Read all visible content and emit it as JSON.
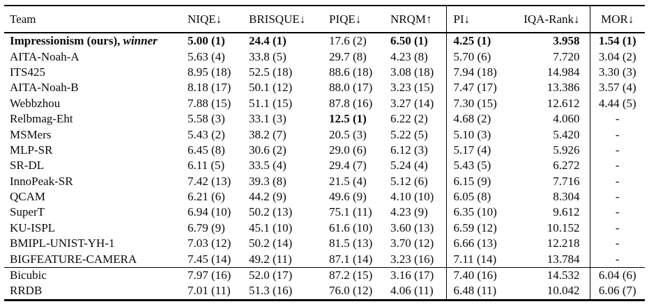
{
  "table": {
    "columns": {
      "team": "Team",
      "niqe": "NIQE↓",
      "brisque": "BRISQUE↓",
      "piqe": "PIQE↓",
      "nrqm": "NRQM↑",
      "pi": "PI↓",
      "iqa_rank": "IQA-Rank↓",
      "mor": "MOR↓"
    },
    "rows": [
      {
        "team": "Impressionism (ours),",
        "team_italic": "winner",
        "team_bold": true,
        "cells": [
          "5.00 (1)",
          "24.4 (1)",
          "17.6 (2)",
          "6.50 (1)",
          "4.25 (1)",
          "3.958",
          "1.54 (1)"
        ],
        "bold_cells": [
          0,
          1,
          3,
          4,
          5,
          6
        ]
      },
      {
        "team": "AITA-Noah-A",
        "cells": [
          "5.63 (4)",
          "33.8 (5)",
          "29.7 (8)",
          "4.23 (8)",
          "5.70 (6)",
          "7.720",
          "3.04 (2)"
        ]
      },
      {
        "team": "ITS425",
        "cells": [
          "8.95 (18)",
          "52.5 (18)",
          "88.6 (18)",
          "3.08 (18)",
          "7.94 (18)",
          "14.984",
          "3.30 (3)"
        ]
      },
      {
        "team": "AITA-Noah-B",
        "cells": [
          "8.18 (17)",
          "50.1 (12)",
          "88.0 (17)",
          "3.23 (15)",
          "7.47 (17)",
          "13.386",
          "3.57 (4)"
        ]
      },
      {
        "team": "Webbzhou",
        "cells": [
          "7.88 (15)",
          "51.1 (15)",
          "87.8 (16)",
          "3.27 (14)",
          "7.30 (15)",
          "12.612",
          "4.44 (5)"
        ]
      },
      {
        "team": "Relbmag-Eht",
        "cells": [
          "5.58 (3)",
          "33.1 (3)",
          "12.5 (1)",
          "6.22 (2)",
          "4.68 (2)",
          "4.060",
          "-"
        ],
        "bold_cells": [
          2
        ]
      },
      {
        "team": "MSMers",
        "cells": [
          "5.43 (2)",
          "38.2 (7)",
          "20.5 (3)",
          "5.22 (5)",
          "5.10 (3)",
          "5.420",
          "-"
        ]
      },
      {
        "team": "MLP-SR",
        "cells": [
          "6.45 (8)",
          "30.6 (2)",
          "29.0 (6)",
          "6.12 (3)",
          "5.17 (4)",
          "5.926",
          "-"
        ]
      },
      {
        "team": "SR-DL",
        "cells": [
          "6.11 (5)",
          "33.5 (4)",
          "29.4 (7)",
          "5.24 (4)",
          "5.43 (5)",
          "6.272",
          "-"
        ]
      },
      {
        "team": "InnoPeak-SR",
        "cells": [
          "7.42 (13)",
          "39.3 (8)",
          "21.5 (4)",
          "5.12 (6)",
          "6.15 (9)",
          "7.716",
          "-"
        ]
      },
      {
        "team": "QCAM",
        "cells": [
          "6.21 (6)",
          "44.2 (9)",
          "49.6 (9)",
          "4.10 (10)",
          "6.05 (8)",
          "8.304",
          "-"
        ]
      },
      {
        "team": "SuperT",
        "cells": [
          "6.94 (10)",
          "50.2 (13)",
          "75.1 (11)",
          "4.23 (9)",
          "6.35 (10)",
          "9.612",
          "-"
        ]
      },
      {
        "team": "KU-ISPL",
        "cells": [
          "6.79 (9)",
          "45.1 (10)",
          "61.6 (10)",
          "3.60 (13)",
          "6.59 (12)",
          "10.152",
          "-"
        ]
      },
      {
        "team": "BMIPL-UNIST-YH-1",
        "cells": [
          "7.03 (12)",
          "50.2 (14)",
          "81.5 (13)",
          "3.70 (12)",
          "6.66 (13)",
          "12.218",
          "-"
        ]
      },
      {
        "team": "BIGFEATURE-CAMERA",
        "cells": [
          "7.45 (14)",
          "49.2 (11)",
          "87.1 (14)",
          "3.23 (16)",
          "7.11 (14)",
          "13.784",
          "-"
        ]
      }
    ],
    "baseline_rows": [
      {
        "team": "Bicubic",
        "cells": [
          "7.97 (16)",
          "52.0 (17)",
          "87.2 (15)",
          "3.16 (17)",
          "7.40 (16)",
          "14.532",
          "6.04 (6)"
        ]
      },
      {
        "team": "RRDB",
        "cells": [
          "7.01 (11)",
          "51.3 (16)",
          "76.0 (12)",
          "4.06 (11)",
          "6.48 (11)",
          "10.042",
          "6.06 (7)"
        ]
      }
    ],
    "colors": {
      "text": "#0a0a0a",
      "rule": "#000000",
      "background": "#ffffff"
    }
  }
}
